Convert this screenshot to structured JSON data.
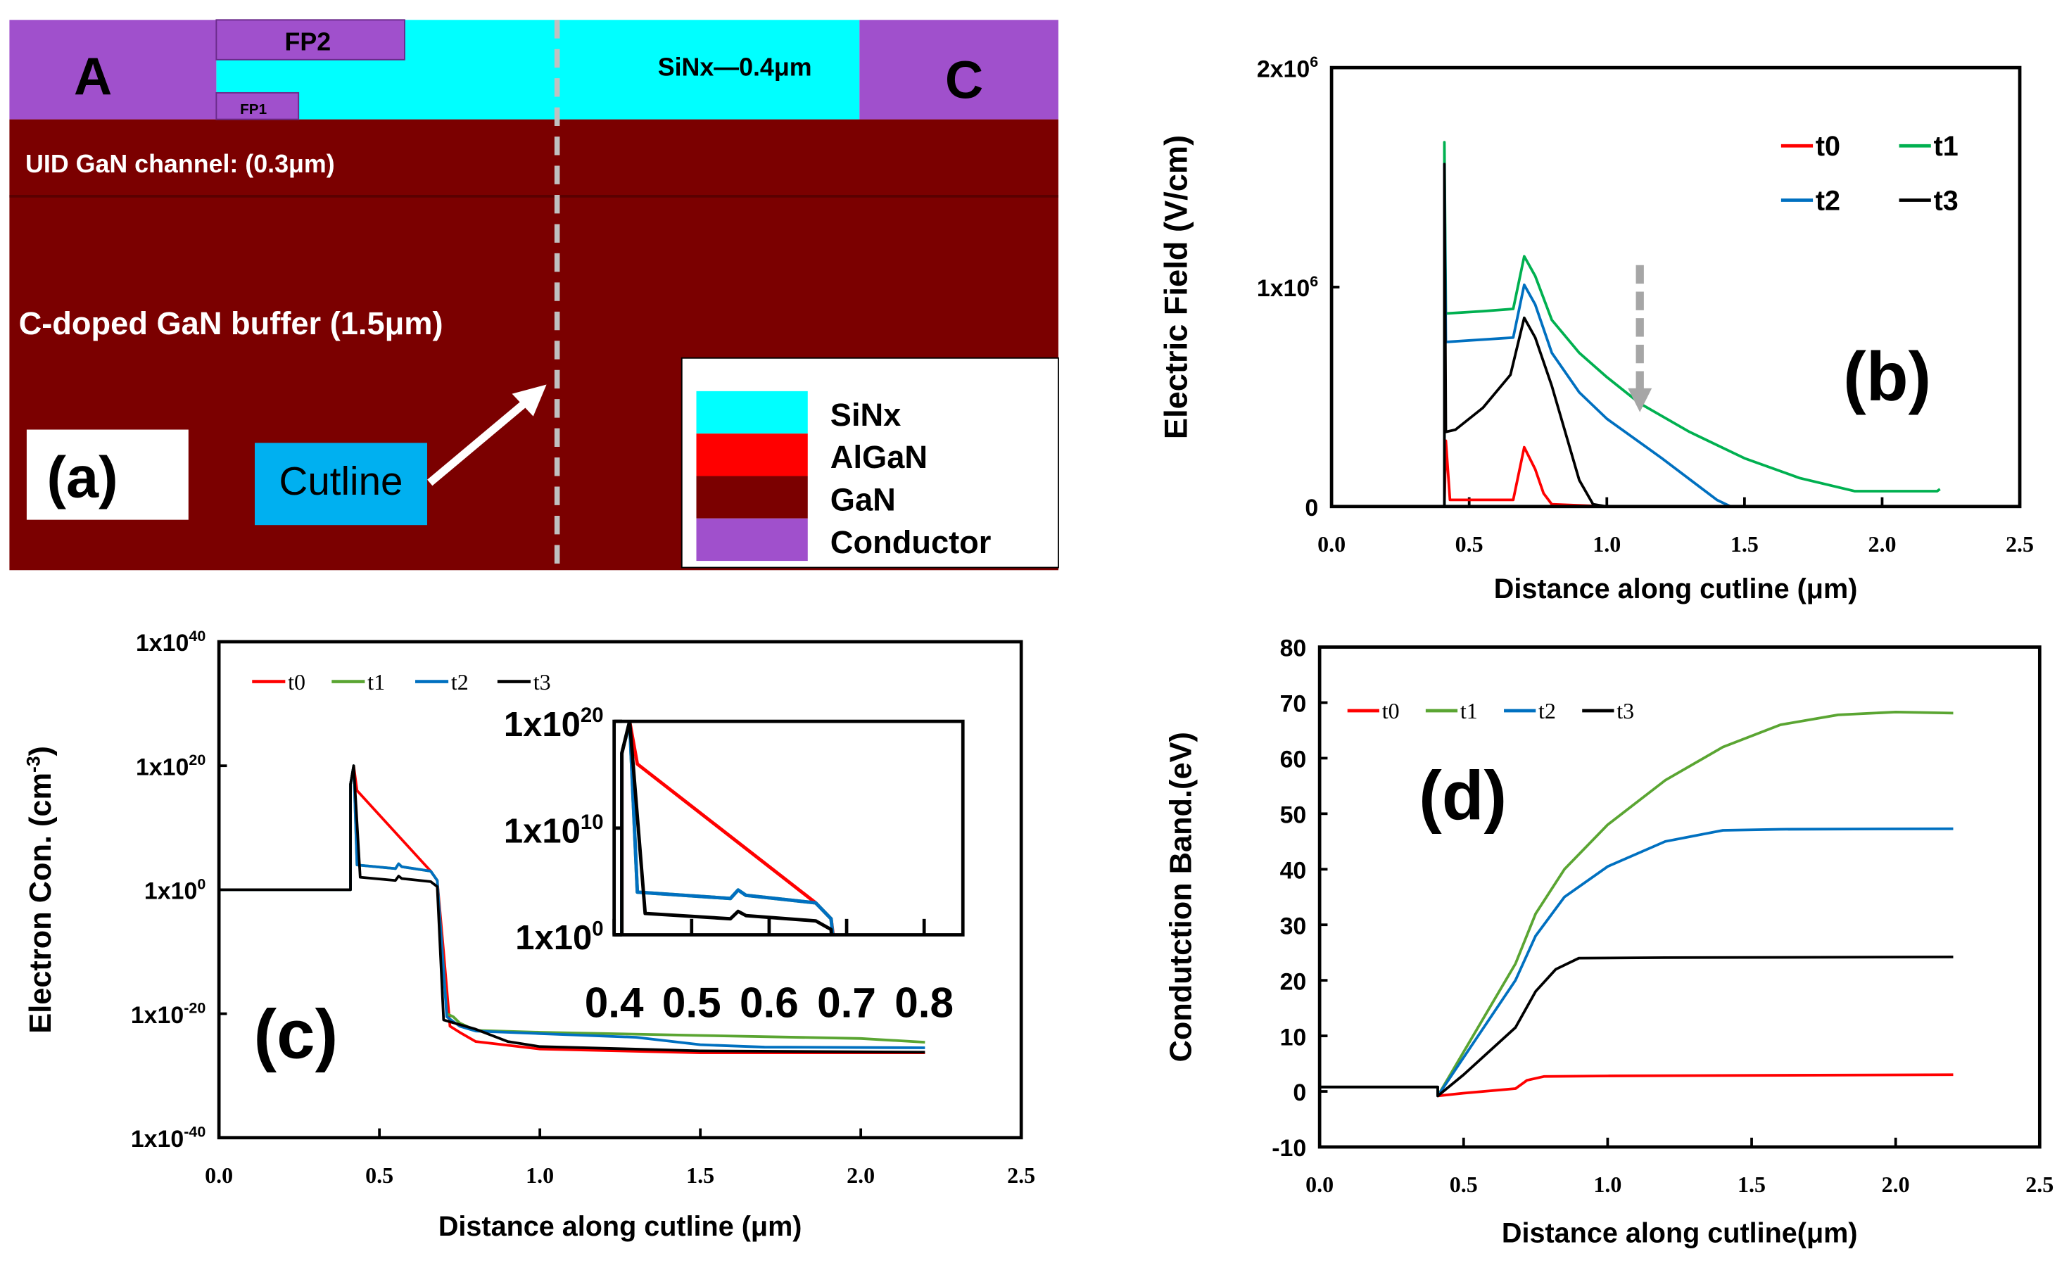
{
  "panel_a": {
    "label": "(a)",
    "electrode_a": "A",
    "electrode_c": "C",
    "fp1": "FP1",
    "fp2": "FP2",
    "sinx_label": "SiNx—0.4μm",
    "channel_label": "UID GaN channel: (0.3μm)",
    "buffer_label": "C-doped GaN buffer (1.5μm)",
    "cutline_label": "Cutline",
    "legend": [
      {
        "label": "SiNx",
        "color": "#00ffff"
      },
      {
        "label": "AlGaN",
        "color": "#ff0000"
      },
      {
        "label": "GaN",
        "color": "#7b0000"
      },
      {
        "label": "Conductor",
        "color": "#a050cc"
      }
    ]
  },
  "chart_data": [
    {
      "id": "b",
      "type": "line",
      "panel_label": "(b)",
      "xlabel": "Distance along cutline (μm)",
      "ylabel": "Electric Field (V/cm)",
      "xlim": [
        0,
        2.5
      ],
      "ylim": [
        0,
        2000000
      ],
      "xticks": [
        "0.0",
        "0.5",
        "1.0",
        "1.5",
        "2.0",
        "2.5"
      ],
      "yticks": [
        {
          "value": 0,
          "base": "0",
          "exp": ""
        },
        {
          "value": 1000000,
          "base": "1x10",
          "exp": "6"
        },
        {
          "value": 2000000,
          "base": "2x10",
          "exp": "6"
        }
      ],
      "legend_position": "top-right",
      "annotation": "gray dashed downward arrow at ~1.12 μm",
      "series": [
        {
          "name": "t0",
          "color": "#ff0000",
          "points": [
            [
              0,
              0
            ],
            [
              0.41,
              0
            ],
            [
              0.415,
              300000
            ],
            [
              0.43,
              30000
            ],
            [
              0.66,
              30000
            ],
            [
              0.7,
              270000
            ],
            [
              0.74,
              170000
            ],
            [
              0.77,
              60000
            ],
            [
              0.8,
              10000
            ],
            [
              1.0,
              0
            ],
            [
              1.5,
              0
            ]
          ]
        },
        {
          "name": "t1",
          "color": "#00b050",
          "points": [
            [
              0,
              0
            ],
            [
              0.41,
              0
            ],
            [
              0.41,
              1660000
            ],
            [
              0.415,
              880000
            ],
            [
              0.55,
              890000
            ],
            [
              0.66,
              900000
            ],
            [
              0.7,
              1140000
            ],
            [
              0.74,
              1050000
            ],
            [
              0.8,
              850000
            ],
            [
              0.9,
              700000
            ],
            [
              1.0,
              590000
            ],
            [
              1.12,
              470000
            ],
            [
              1.3,
              340000
            ],
            [
              1.5,
              220000
            ],
            [
              1.7,
              130000
            ],
            [
              1.9,
              70000
            ],
            [
              2.2,
              70000
            ],
            [
              2.21,
              80000
            ]
          ]
        },
        {
          "name": "t2",
          "color": "#0070c0",
          "points": [
            [
              0,
              0
            ],
            [
              0.41,
              0
            ],
            [
              0.41,
              1560000
            ],
            [
              0.415,
              750000
            ],
            [
              0.66,
              770000
            ],
            [
              0.7,
              1010000
            ],
            [
              0.74,
              920000
            ],
            [
              0.8,
              700000
            ],
            [
              0.9,
              520000
            ],
            [
              1.0,
              400000
            ],
            [
              1.2,
              220000
            ],
            [
              1.4,
              30000
            ],
            [
              1.45,
              0
            ],
            [
              2.2,
              0
            ]
          ]
        },
        {
          "name": "t3",
          "color": "#000000",
          "points": [
            [
              0,
              0
            ],
            [
              0.41,
              0
            ],
            [
              0.41,
              1560000
            ],
            [
              0.415,
              340000
            ],
            [
              0.45,
              350000
            ],
            [
              0.55,
              450000
            ],
            [
              0.65,
              600000
            ],
            [
              0.7,
              860000
            ],
            [
              0.74,
              770000
            ],
            [
              0.8,
              550000
            ],
            [
              0.9,
              120000
            ],
            [
              0.95,
              10000
            ],
            [
              1.0,
              0
            ],
            [
              2.2,
              0
            ]
          ]
        }
      ]
    },
    {
      "id": "c",
      "type": "line",
      "panel_label": "(c)",
      "xlabel": "Distance along cutline (μm)",
      "ylabel": "Electron Con. (cm",
      "ylabel_exp": "-3",
      "ylabel_end": ")",
      "yscale": "log10",
      "xlim": [
        0,
        2.5
      ],
      "ylim_log10": [
        -40,
        40
      ],
      "xticks": [
        "0.0",
        "0.5",
        "1.0",
        "1.5",
        "2.0",
        "2.5"
      ],
      "yticks": [
        {
          "value": 40,
          "base": "1x10",
          "exp": "40"
        },
        {
          "value": 20,
          "base": "1x10",
          "exp": "20"
        },
        {
          "value": 0,
          "base": "1x10",
          "exp": "0"
        },
        {
          "value": -20,
          "base": "1x10",
          "exp": "-20"
        },
        {
          "value": -40,
          "base": "1x10",
          "exp": "-40"
        }
      ],
      "legend_position": "top-left",
      "inset": {
        "xlim": [
          0.4,
          0.85
        ],
        "ylim_log10": [
          0,
          20
        ],
        "xticks": [
          "0.4",
          "0.5",
          "0.6",
          "0.7",
          "0.8"
        ],
        "yticks": [
          {
            "value": 20,
            "base": "1x10",
            "exp": "20"
          },
          {
            "value": 10,
            "base": "1x10",
            "exp": "10"
          },
          {
            "value": 0,
            "base": "1x10",
            "exp": "0"
          }
        ]
      },
      "series": [
        {
          "name": "t0",
          "color": "#ff0000",
          "points": [
            [
              0,
              0
            ],
            [
              0.41,
              0
            ],
            [
              0.41,
              17
            ],
            [
              0.42,
              20
            ],
            [
              0.43,
              16
            ],
            [
              0.66,
              3
            ],
            [
              0.68,
              1.5
            ],
            [
              0.7,
              -10
            ],
            [
              0.72,
              -22
            ],
            [
              0.75,
              -23
            ],
            [
              0.8,
              -24.5
            ],
            [
              1.0,
              -25.7
            ],
            [
              1.5,
              -26.3
            ],
            [
              2.2,
              -26.3
            ]
          ]
        },
        {
          "name": "t1",
          "color": "#5aa532",
          "points": [
            [
              0,
              0
            ],
            [
              0.41,
              0
            ],
            [
              0.41,
              17
            ],
            [
              0.42,
              20
            ],
            [
              0.43,
              4
            ],
            [
              0.55,
              3.4
            ],
            [
              0.56,
              4.2
            ],
            [
              0.57,
              3.7
            ],
            [
              0.66,
              3
            ],
            [
              0.68,
              1.5
            ],
            [
              0.71,
              -20
            ],
            [
              0.73,
              -20.5
            ],
            [
              0.75,
              -21.5
            ],
            [
              0.8,
              -22.7
            ],
            [
              1.0,
              -23
            ],
            [
              1.5,
              -23.5
            ],
            [
              2.0,
              -24
            ],
            [
              2.2,
              -24.6
            ]
          ]
        },
        {
          "name": "t2",
          "color": "#0070c0",
          "points": [
            [
              0,
              0
            ],
            [
              0.41,
              0
            ],
            [
              0.41,
              17
            ],
            [
              0.42,
              20
            ],
            [
              0.43,
              4
            ],
            [
              0.55,
              3.4
            ],
            [
              0.56,
              4.2
            ],
            [
              0.57,
              3.7
            ],
            [
              0.66,
              3
            ],
            [
              0.68,
              1.5
            ],
            [
              0.71,
              -20.5
            ],
            [
              0.75,
              -22
            ],
            [
              0.8,
              -22.8
            ],
            [
              1.0,
              -23.2
            ],
            [
              1.3,
              -23.8
            ],
            [
              1.5,
              -25
            ],
            [
              1.7,
              -25.4
            ],
            [
              2.2,
              -25.5
            ]
          ]
        },
        {
          "name": "t3",
          "color": "#000000",
          "points": [
            [
              0,
              0
            ],
            [
              0.41,
              0
            ],
            [
              0.41,
              17
            ],
            [
              0.42,
              20
            ],
            [
              0.44,
              2
            ],
            [
              0.55,
              1.5
            ],
            [
              0.56,
              2.2
            ],
            [
              0.57,
              1.8
            ],
            [
              0.66,
              1.3
            ],
            [
              0.68,
              0.5
            ],
            [
              0.7,
              -21
            ],
            [
              0.8,
              -22.5
            ],
            [
              0.9,
              -24.5
            ],
            [
              1.0,
              -25.3
            ],
            [
              1.5,
              -26
            ],
            [
              2.2,
              -26.2
            ]
          ]
        }
      ]
    },
    {
      "id": "d",
      "type": "line",
      "panel_label": "(d)",
      "xlabel": "Distance along cutline(μm)",
      "ylabel": "Condutction Band.(eV)",
      "xlim": [
        0,
        2.5
      ],
      "ylim": [
        -10,
        80
      ],
      "xticks": [
        "0.0",
        "0.5",
        "1.0",
        "1.5",
        "2.0",
        "2.5"
      ],
      "yticks": [
        {
          "value": 80,
          "base": "80",
          "exp": ""
        },
        {
          "value": 70,
          "base": "70",
          "exp": ""
        },
        {
          "value": 60,
          "base": "60",
          "exp": ""
        },
        {
          "value": 50,
          "base": "50",
          "exp": ""
        },
        {
          "value": 40,
          "base": "40",
          "exp": ""
        },
        {
          "value": 30,
          "base": "30",
          "exp": ""
        },
        {
          "value": 20,
          "base": "20",
          "exp": ""
        },
        {
          "value": 10,
          "base": "10",
          "exp": ""
        },
        {
          "value": 0,
          "base": "0",
          "exp": ""
        },
        {
          "value": -10,
          "base": "-10",
          "exp": ""
        }
      ],
      "legend_position": "top-left",
      "series": [
        {
          "name": "t0",
          "color": "#ff0000",
          "points": [
            [
              0,
              0.8
            ],
            [
              0.41,
              0.8
            ],
            [
              0.41,
              -0.8
            ],
            [
              0.5,
              -0.3
            ],
            [
              0.68,
              0.5
            ],
            [
              0.72,
              2
            ],
            [
              0.78,
              2.7
            ],
            [
              1.0,
              2.8
            ],
            [
              2.2,
              3
            ]
          ]
        },
        {
          "name": "t1",
          "color": "#5aa532",
          "points": [
            [
              0,
              0.8
            ],
            [
              0.41,
              0.8
            ],
            [
              0.41,
              -0.8
            ],
            [
              0.68,
              23
            ],
            [
              0.75,
              32
            ],
            [
              0.85,
              40
            ],
            [
              1.0,
              48
            ],
            [
              1.2,
              56
            ],
            [
              1.4,
              62
            ],
            [
              1.6,
              66
            ],
            [
              1.8,
              67.8
            ],
            [
              2.0,
              68.3
            ],
            [
              2.2,
              68.1
            ]
          ]
        },
        {
          "name": "t2",
          "color": "#0070c0",
          "points": [
            [
              0,
              0.8
            ],
            [
              0.41,
              0.8
            ],
            [
              0.41,
              -0.8
            ],
            [
              0.68,
              20
            ],
            [
              0.75,
              28
            ],
            [
              0.85,
              35
            ],
            [
              1.0,
              40.5
            ],
            [
              1.2,
              45
            ],
            [
              1.4,
              47
            ],
            [
              1.6,
              47.2
            ],
            [
              2.2,
              47.3
            ]
          ]
        },
        {
          "name": "t3",
          "color": "#000000",
          "points": [
            [
              0,
              0.8
            ],
            [
              0.41,
              0.8
            ],
            [
              0.41,
              -0.8
            ],
            [
              0.5,
              3
            ],
            [
              0.68,
              11.5
            ],
            [
              0.75,
              18
            ],
            [
              0.82,
              22
            ],
            [
              0.9,
              24
            ],
            [
              1.2,
              24.1
            ],
            [
              2.2,
              24.2
            ]
          ]
        }
      ]
    }
  ]
}
